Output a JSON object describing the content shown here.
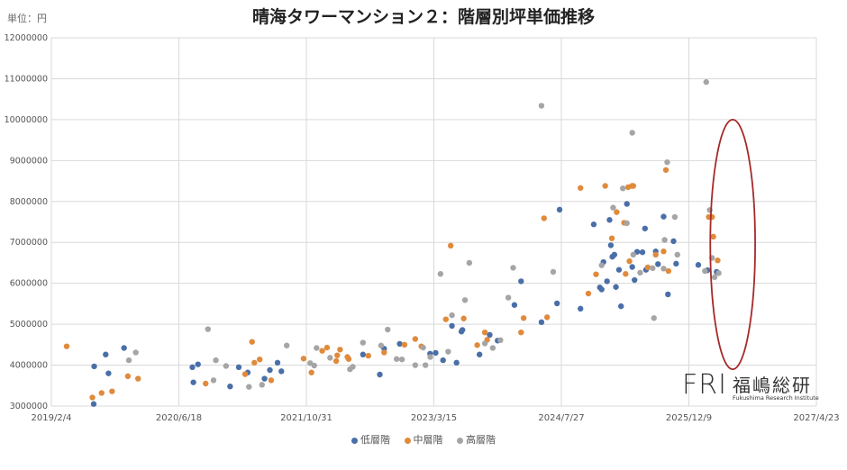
{
  "header": {
    "title": "晴海タワーマンション２：階層別坪単価推移",
    "unit": "単位：円"
  },
  "logo": {
    "mark": "FRI",
    "name_jp": "福嶋総研",
    "name_en": "Fukushima Research Institute"
  },
  "colors": {
    "low": "#4a6fa8",
    "mid": "#e08a3c",
    "high": "#a5a5a5",
    "highlight": "#a52a2a",
    "grid": "#d9d9d9"
  },
  "chart_data": {
    "type": "scatter",
    "title": "晴海タワーマンション２：階層別坪単価推移",
    "xlabel": "",
    "ylabel": "",
    "x_type": "date",
    "xlim": [
      "2019-02-04",
      "2027-04-23"
    ],
    "x_ticks": [
      "2019/2/4",
      "2020/6/18",
      "2021/10/31",
      "2023/3/15",
      "2024/7/27",
      "2025/12/9",
      "2027/4/23"
    ],
    "ylim": [
      3000000,
      12000000
    ],
    "y_ticks": [
      "3000000",
      "4000000",
      "5000000",
      "6000000",
      "7000000",
      "8000000",
      "9000000",
      "10000000",
      "11000000",
      "12000000"
    ],
    "grid": true,
    "legend_position": "bottom",
    "highlight_ellipse": {
      "x_center": "2026-05-30",
      "x_half_span_days": 88,
      "y_center": 6950000,
      "y_half_span": 3050000
    },
    "series": [
      {
        "name": "低層階",
        "color": "#4a6fa8",
        "points": [
          [
            "2019-07-20",
            3050000
          ],
          [
            "2019-07-22",
            3970000
          ],
          [
            "2019-09-05",
            4260000
          ],
          [
            "2019-09-16",
            3800000
          ],
          [
            "2019-11-16",
            4420000
          ],
          [
            "2020-08-10",
            3950000
          ],
          [
            "2020-08-14",
            3580000
          ],
          [
            "2020-09-01",
            4020000
          ],
          [
            "2021-01-05",
            3480000
          ],
          [
            "2021-02-08",
            3950000
          ],
          [
            "2021-03-15",
            3820000
          ],
          [
            "2021-05-20",
            3670000
          ],
          [
            "2021-06-10",
            3880000
          ],
          [
            "2021-07-10",
            4060000
          ],
          [
            "2021-07-25",
            3850000
          ],
          [
            "2022-06-10",
            4260000
          ],
          [
            "2022-08-15",
            3770000
          ],
          [
            "2022-09-01",
            4400000
          ],
          [
            "2022-11-01",
            4520000
          ],
          [
            "2023-02-28",
            4280000
          ],
          [
            "2023-03-22",
            4300000
          ],
          [
            "2023-04-20",
            4120000
          ],
          [
            "2023-05-25",
            4960000
          ],
          [
            "2023-06-12",
            4060000
          ],
          [
            "2023-07-01",
            4820000
          ],
          [
            "2023-07-05",
            4860000
          ],
          [
            "2023-09-10",
            4260000
          ],
          [
            "2023-10-20",
            4740000
          ],
          [
            "2023-11-20",
            4600000
          ],
          [
            "2024-01-25",
            5470000
          ],
          [
            "2024-02-20",
            6050000
          ],
          [
            "2024-05-10",
            5050000
          ],
          [
            "2024-07-10",
            5510000
          ],
          [
            "2024-07-20",
            7800000
          ],
          [
            "2024-10-10",
            5380000
          ],
          [
            "2024-12-01",
            7440000
          ],
          [
            "2024-12-25",
            5900000
          ],
          [
            "2025-01-01",
            5850000
          ],
          [
            "2025-01-08",
            6520000
          ],
          [
            "2025-01-22",
            6050000
          ],
          [
            "2025-02-01",
            7550000
          ],
          [
            "2025-02-06",
            6930000
          ],
          [
            "2025-02-12",
            6650000
          ],
          [
            "2025-02-20",
            6700000
          ],
          [
            "2025-02-26",
            5910000
          ],
          [
            "2025-03-10",
            6330000
          ],
          [
            "2025-03-18",
            5440000
          ],
          [
            "2025-04-10",
            7940000
          ],
          [
            "2025-05-01",
            6400000
          ],
          [
            "2025-05-10",
            6080000
          ],
          [
            "2025-05-20",
            6770000
          ],
          [
            "2025-06-10",
            6760000
          ],
          [
            "2025-06-20",
            7340000
          ],
          [
            "2025-06-24",
            6330000
          ],
          [
            "2025-08-01",
            6780000
          ],
          [
            "2025-08-10",
            6470000
          ],
          [
            "2025-09-01",
            7630000
          ],
          [
            "2025-09-18",
            5730000
          ],
          [
            "2025-10-10",
            7030000
          ],
          [
            "2025-10-20",
            6480000
          ],
          [
            "2026-01-15",
            6450000
          ],
          [
            "2026-02-20",
            6320000
          ],
          [
            "2026-03-28",
            6280000
          ]
        ]
      },
      {
        "name": "中層階",
        "color": "#e08a3c",
        "points": [
          [
            "2019-04-05",
            4460000
          ],
          [
            "2019-07-15",
            3210000
          ],
          [
            "2019-08-20",
            3320000
          ],
          [
            "2019-09-30",
            3360000
          ],
          [
            "2019-12-01",
            3730000
          ],
          [
            "2020-01-10",
            3670000
          ],
          [
            "2020-10-01",
            3550000
          ],
          [
            "2021-03-05",
            3780000
          ],
          [
            "2021-04-01",
            4570000
          ],
          [
            "2021-04-10",
            4060000
          ],
          [
            "2021-05-01",
            4140000
          ],
          [
            "2021-06-15",
            3630000
          ],
          [
            "2021-10-20",
            4160000
          ],
          [
            "2021-11-20",
            3820000
          ],
          [
            "2022-01-01",
            4350000
          ],
          [
            "2022-01-20",
            4430000
          ],
          [
            "2022-02-25",
            4100000
          ],
          [
            "2022-03-01",
            4240000
          ],
          [
            "2022-03-12",
            4380000
          ],
          [
            "2022-04-10",
            4200000
          ],
          [
            "2022-04-15",
            4150000
          ],
          [
            "2022-07-01",
            4230000
          ],
          [
            "2022-09-01",
            4310000
          ],
          [
            "2022-11-20",
            4500000
          ],
          [
            "2023-01-01",
            4640000
          ],
          [
            "2023-01-25",
            4460000
          ],
          [
            "2023-05-01",
            5120000
          ],
          [
            "2023-05-20",
            6920000
          ],
          [
            "2023-07-10",
            5140000
          ],
          [
            "2023-09-01",
            4490000
          ],
          [
            "2023-10-01",
            4800000
          ],
          [
            "2023-10-10",
            4620000
          ],
          [
            "2024-02-20",
            4800000
          ],
          [
            "2024-03-01",
            5150000
          ],
          [
            "2024-05-20",
            7590000
          ],
          [
            "2024-06-01",
            5170000
          ],
          [
            "2024-10-10",
            8330000
          ],
          [
            "2024-11-10",
            5750000
          ],
          [
            "2024-12-10",
            6220000
          ],
          [
            "2025-01-15",
            8380000
          ],
          [
            "2025-02-10",
            7100000
          ],
          [
            "2025-03-01",
            7740000
          ],
          [
            "2025-03-30",
            7480000
          ],
          [
            "2025-04-05",
            6230000
          ],
          [
            "2025-04-15",
            8350000
          ],
          [
            "2025-04-20",
            6540000
          ],
          [
            "2025-04-30",
            8380000
          ],
          [
            "2025-05-05",
            8380000
          ],
          [
            "2025-07-01",
            6390000
          ],
          [
            "2025-08-01",
            6700000
          ],
          [
            "2025-09-01",
            6780000
          ],
          [
            "2025-09-10",
            8770000
          ],
          [
            "2025-09-20",
            6300000
          ],
          [
            "2026-02-25",
            7620000
          ],
          [
            "2026-03-10",
            7620000
          ],
          [
            "2026-03-15",
            7140000
          ],
          [
            "2026-04-01",
            6560000
          ]
        ]
      },
      {
        "name": "高層階",
        "color": "#a5a5a5",
        "points": [
          [
            "2019-12-05",
            4120000
          ],
          [
            "2020-01-01",
            4310000
          ],
          [
            "2020-10-10",
            4880000
          ],
          [
            "2020-11-01",
            3630000
          ],
          [
            "2020-11-10",
            4120000
          ],
          [
            "2020-12-20",
            3980000
          ],
          [
            "2021-03-20",
            3470000
          ],
          [
            "2021-05-10",
            3520000
          ],
          [
            "2021-08-15",
            4480000
          ],
          [
            "2021-11-15",
            4050000
          ],
          [
            "2021-12-01",
            3990000
          ],
          [
            "2021-12-10",
            4420000
          ],
          [
            "2022-02-01",
            4180000
          ],
          [
            "2022-04-20",
            3900000
          ],
          [
            "2022-05-01",
            3960000
          ],
          [
            "2022-06-10",
            4550000
          ],
          [
            "2022-08-20",
            4480000
          ],
          [
            "2022-09-15",
            4870000
          ],
          [
            "2022-10-20",
            4150000
          ],
          [
            "2022-11-10",
            4140000
          ],
          [
            "2023-01-01",
            4000000
          ],
          [
            "2023-02-01",
            4430000
          ],
          [
            "2023-02-10",
            4000000
          ],
          [
            "2023-03-01",
            4200000
          ],
          [
            "2023-04-10",
            6230000
          ],
          [
            "2023-05-10",
            4330000
          ],
          [
            "2023-05-25",
            5220000
          ],
          [
            "2023-07-15",
            5590000
          ],
          [
            "2023-08-01",
            6500000
          ],
          [
            "2023-10-01",
            4530000
          ],
          [
            "2023-11-01",
            4420000
          ],
          [
            "2023-12-01",
            4610000
          ],
          [
            "2024-01-01",
            5650000
          ],
          [
            "2024-01-20",
            6380000
          ],
          [
            "2024-05-10",
            10340000
          ],
          [
            "2024-06-25",
            6280000
          ],
          [
            "2025-01-01",
            6440000
          ],
          [
            "2025-02-15",
            7850000
          ],
          [
            "2025-03-25",
            8320000
          ],
          [
            "2025-04-10",
            7470000
          ],
          [
            "2025-05-01",
            9680000
          ],
          [
            "2025-05-05",
            6700000
          ],
          [
            "2025-06-01",
            6260000
          ],
          [
            "2025-07-20",
            6370000
          ],
          [
            "2025-07-25",
            5150000
          ],
          [
            "2025-09-01",
            6360000
          ],
          [
            "2025-09-05",
            7060000
          ],
          [
            "2025-09-15",
            8960000
          ],
          [
            "2025-10-15",
            7620000
          ],
          [
            "2025-10-25",
            6700000
          ],
          [
            "2026-02-10",
            6300000
          ],
          [
            "2026-02-15",
            10920000
          ],
          [
            "2026-03-01",
            7790000
          ],
          [
            "2026-03-10",
            6620000
          ],
          [
            "2026-03-20",
            6150000
          ],
          [
            "2026-04-05",
            6250000
          ]
        ]
      }
    ]
  }
}
